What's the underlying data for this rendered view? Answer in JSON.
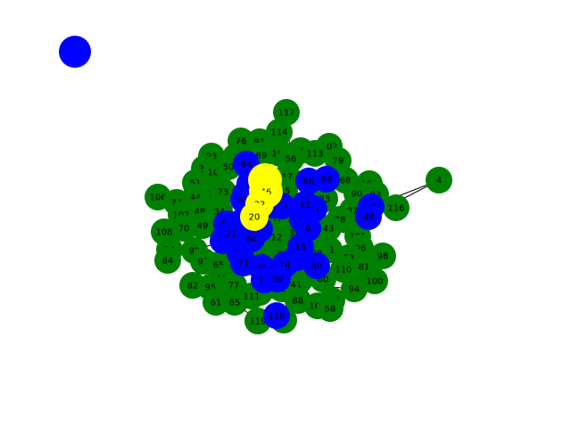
{
  "graph": {
    "colors": {
      "green": "#008000",
      "blue": "#0000ff",
      "yellow": "#ffff00",
      "edge": "#000000"
    },
    "nodes": [
      {
        "id": "117",
        "color": "green"
      },
      {
        "id": "114",
        "color": "green"
      },
      {
        "id": "76",
        "color": "green"
      },
      {
        "id": "91",
        "color": "green"
      },
      {
        "id": "102",
        "color": "green"
      },
      {
        "id": "89",
        "color": "green"
      },
      {
        "id": "113",
        "color": "green"
      },
      {
        "id": "93",
        "color": "green"
      },
      {
        "id": "63",
        "color": "green"
      },
      {
        "id": "69",
        "color": "green"
      },
      {
        "id": "105",
        "color": "green"
      },
      {
        "id": "56",
        "color": "green"
      },
      {
        "id": "79",
        "color": "green"
      },
      {
        "id": "37",
        "color": "green"
      },
      {
        "id": "103",
        "color": "green"
      },
      {
        "id": "50",
        "color": "green"
      },
      {
        "id": "84",
        "color": "blue"
      },
      {
        "id": "17",
        "color": "green"
      },
      {
        "id": "51",
        "color": "green"
      },
      {
        "id": "30",
        "color": "yellow"
      },
      {
        "id": "46",
        "color": "yellow"
      },
      {
        "id": "35",
        "color": "green"
      },
      {
        "id": "66",
        "color": "blue"
      },
      {
        "id": "86",
        "color": "blue"
      },
      {
        "id": "68",
        "color": "green"
      },
      {
        "id": "109",
        "color": "green"
      },
      {
        "id": "4",
        "color": "green"
      },
      {
        "id": "106",
        "color": "green"
      },
      {
        "id": "74",
        "color": "green"
      },
      {
        "id": "57",
        "color": "green"
      },
      {
        "id": "73",
        "color": "green"
      },
      {
        "id": "44",
        "color": "green"
      },
      {
        "id": "58",
        "color": "blue"
      },
      {
        "id": "90",
        "color": "green"
      },
      {
        "id": "83",
        "color": "green"
      },
      {
        "id": "45",
        "color": "blue"
      },
      {
        "id": "32",
        "color": "yellow"
      },
      {
        "id": "23",
        "color": "green"
      },
      {
        "id": "42",
        "color": "blue"
      },
      {
        "id": "116",
        "color": "green"
      },
      {
        "id": "48",
        "color": "green"
      },
      {
        "id": "34",
        "color": "green"
      },
      {
        "id": "10",
        "color": "blue"
      },
      {
        "id": "26",
        "color": "green"
      },
      {
        "id": "24",
        "color": "blue"
      },
      {
        "id": "87",
        "color": "green"
      },
      {
        "id": "107",
        "color": "green"
      },
      {
        "id": "20",
        "color": "yellow"
      },
      {
        "id": "19",
        "color": "green"
      },
      {
        "id": "47",
        "color": "green"
      },
      {
        "id": "78",
        "color": "green"
      },
      {
        "id": "49",
        "color": "green"
      },
      {
        "id": "55",
        "color": "blue"
      },
      {
        "id": "52",
        "color": "blue"
      },
      {
        "id": "70",
        "color": "green"
      },
      {
        "id": "5",
        "color": "blue"
      },
      {
        "id": "9",
        "color": "blue"
      },
      {
        "id": "25",
        "color": "green"
      },
      {
        "id": "43",
        "color": "green"
      },
      {
        "id": "108",
        "color": "green"
      },
      {
        "id": "39",
        "color": "green"
      },
      {
        "id": "101",
        "color": "green"
      },
      {
        "id": "18",
        "color": "blue"
      },
      {
        "id": "3",
        "color": "blue"
      },
      {
        "id": "6",
        "color": "green"
      },
      {
        "id": "13",
        "color": "green"
      },
      {
        "id": "96",
        "color": "green"
      },
      {
        "id": "92",
        "color": "green"
      },
      {
        "id": "25b",
        "label": "25",
        "color": "green"
      },
      {
        "id": "31",
        "color": "green"
      },
      {
        "id": "54",
        "color": "green"
      },
      {
        "id": "27",
        "color": "blue"
      },
      {
        "id": "29",
        "color": "green"
      },
      {
        "id": "67",
        "color": "blue"
      },
      {
        "id": "38",
        "color": "green"
      },
      {
        "id": "53",
        "color": "green"
      },
      {
        "id": "98",
        "color": "green"
      },
      {
        "id": "97",
        "color": "green"
      },
      {
        "id": "65",
        "color": "green"
      },
      {
        "id": "71",
        "color": "blue"
      },
      {
        "id": "2",
        "color": "green"
      },
      {
        "id": "84b",
        "label": "84",
        "color": "green"
      },
      {
        "id": "14",
        "color": "blue"
      },
      {
        "id": "36",
        "color": "blue"
      },
      {
        "id": "80",
        "color": "blue"
      },
      {
        "id": "110",
        "color": "green"
      },
      {
        "id": "81",
        "color": "green"
      },
      {
        "id": "112",
        "color": "green"
      },
      {
        "id": "62",
        "color": "green"
      },
      {
        "id": "60",
        "color": "green"
      },
      {
        "id": "82",
        "color": "green"
      },
      {
        "id": "75",
        "color": "blue"
      },
      {
        "id": "59",
        "color": "blue"
      },
      {
        "id": "100",
        "color": "green"
      },
      {
        "id": "95",
        "color": "green"
      },
      {
        "id": "77",
        "color": "green"
      },
      {
        "id": "28",
        "color": "green"
      },
      {
        "id": "41",
        "color": "green"
      },
      {
        "id": "94",
        "color": "green"
      },
      {
        "id": "72",
        "color": "green"
      },
      {
        "id": "115",
        "color": "green"
      },
      {
        "id": "61",
        "color": "green"
      },
      {
        "id": "85",
        "color": "green"
      },
      {
        "id": "111",
        "color": "green"
      },
      {
        "id": "88",
        "color": "green"
      },
      {
        "id": "104",
        "color": "green"
      },
      {
        "id": "58b",
        "label": "58",
        "color": "green"
      },
      {
        "id": "119",
        "color": "green"
      },
      {
        "id": "118",
        "color": "blue"
      },
      {
        "id": "99",
        "color": "green"
      },
      {
        "id": "40",
        "color": "blue"
      },
      {
        "id": "1",
        "color": "blue"
      },
      {
        "id": "33",
        "color": "blue"
      },
      {
        "id": "15",
        "color": "blue"
      },
      {
        "id": "64",
        "color": "blue"
      },
      {
        "id": "12",
        "color": "green"
      },
      {
        "id": "21",
        "color": "blue"
      },
      {
        "id": "7",
        "color": "blue"
      },
      {
        "id": "8",
        "color": "blue"
      },
      {
        "id": "11",
        "color": "blue"
      },
      {
        "id": "0",
        "color": "blue"
      }
    ],
    "edges": [
      [
        "117",
        "114"
      ],
      [
        "117",
        "56"
      ],
      [
        "114",
        "76"
      ],
      [
        "114",
        "91"
      ],
      [
        "91",
        "69"
      ],
      [
        "89",
        "113"
      ],
      [
        "102",
        "79"
      ],
      [
        "93",
        "37"
      ],
      [
        "93",
        "103"
      ],
      [
        "63",
        "50"
      ],
      [
        "69",
        "84"
      ],
      [
        "105",
        "56"
      ],
      [
        "79",
        "68"
      ],
      [
        "50",
        "84"
      ],
      [
        "84",
        "17"
      ],
      [
        "17",
        "35"
      ],
      [
        "17",
        "66"
      ],
      [
        "66",
        "86"
      ],
      [
        "86",
        "68"
      ],
      [
        "68",
        "109"
      ],
      [
        "109",
        "90"
      ],
      [
        "90",
        "83"
      ],
      [
        "83",
        "42"
      ],
      [
        "42",
        "116"
      ],
      [
        "4",
        "42"
      ],
      [
        "4",
        "40"
      ],
      [
        "106",
        "74"
      ],
      [
        "74",
        "44"
      ],
      [
        "57",
        "73"
      ],
      [
        "44",
        "57"
      ],
      [
        "73",
        "58"
      ],
      [
        "58",
        "45"
      ],
      [
        "45",
        "32"
      ],
      [
        "32",
        "30"
      ],
      [
        "30",
        "46"
      ],
      [
        "46",
        "20"
      ],
      [
        "20",
        "10"
      ],
      [
        "10",
        "19"
      ],
      [
        "19",
        "26"
      ],
      [
        "26",
        "24"
      ],
      [
        "24",
        "47"
      ],
      [
        "47",
        "78"
      ],
      [
        "87",
        "78"
      ],
      [
        "23",
        "24"
      ],
      [
        "48",
        "34"
      ],
      [
        "34",
        "55"
      ],
      [
        "55",
        "52"
      ],
      [
        "52",
        "5"
      ],
      [
        "5",
        "9"
      ],
      [
        "9",
        "18"
      ],
      [
        "18",
        "6"
      ],
      [
        "6",
        "39"
      ],
      [
        "39",
        "13"
      ],
      [
        "13",
        "25b"
      ],
      [
        "25b",
        "31"
      ],
      [
        "31",
        "53"
      ],
      [
        "53",
        "98"
      ],
      [
        "101",
        "96"
      ],
      [
        "43",
        "101"
      ],
      [
        "70",
        "49"
      ],
      [
        "49",
        "55"
      ],
      [
        "108",
        "70"
      ],
      [
        "107",
        "48"
      ],
      [
        "92",
        "3"
      ],
      [
        "3",
        "27"
      ],
      [
        "27",
        "71"
      ],
      [
        "71",
        "2"
      ],
      [
        "2",
        "29"
      ],
      [
        "29",
        "67"
      ],
      [
        "67",
        "38"
      ],
      [
        "38",
        "80"
      ],
      [
        "80",
        "60"
      ],
      [
        "60",
        "110"
      ],
      [
        "110",
        "81"
      ],
      [
        "81",
        "100"
      ],
      [
        "54",
        "84b"
      ],
      [
        "97",
        "65"
      ],
      [
        "65",
        "112"
      ],
      [
        "112",
        "36"
      ],
      [
        "36",
        "14"
      ],
      [
        "14",
        "75"
      ],
      [
        "75",
        "59"
      ],
      [
        "59",
        "62"
      ],
      [
        "62",
        "28"
      ],
      [
        "28",
        "41"
      ],
      [
        "41",
        "94"
      ],
      [
        "82",
        "95"
      ],
      [
        "95",
        "77"
      ],
      [
        "77",
        "72"
      ],
      [
        "72",
        "111"
      ],
      [
        "111",
        "88"
      ],
      [
        "88",
        "104"
      ],
      [
        "104",
        "58b"
      ],
      [
        "58b",
        "115"
      ],
      [
        "61",
        "85"
      ],
      [
        "85",
        "119"
      ],
      [
        "119",
        "118"
      ],
      [
        "118",
        "99"
      ],
      [
        "112",
        "61"
      ],
      [
        "116",
        "40"
      ],
      [
        "107",
        "106"
      ],
      [
        "37",
        "51"
      ],
      [
        "51",
        "48"
      ],
      [
        "103",
        "63"
      ],
      [
        "105",
        "89"
      ],
      [
        "79",
        "113"
      ],
      [
        "109",
        "87"
      ],
      [
        "90",
        "43"
      ],
      [
        "35",
        "23"
      ],
      [
        "46",
        "35"
      ],
      [
        "30",
        "66"
      ],
      [
        "20",
        "55"
      ],
      [
        "19",
        "39"
      ],
      [
        "47",
        "13"
      ],
      [
        "78",
        "25b"
      ],
      [
        "96",
        "31"
      ],
      [
        "9",
        "2"
      ],
      [
        "6",
        "29"
      ],
      [
        "14",
        "62"
      ],
      [
        "67",
        "80"
      ],
      [
        "36",
        "75"
      ],
      [
        "71",
        "14"
      ],
      [
        "92",
        "97"
      ],
      [
        "3",
        "65"
      ],
      [
        "28",
        "115"
      ],
      [
        "41",
        "60"
      ],
      [
        "72",
        "88"
      ],
      [
        "82",
        "77"
      ],
      [
        "98",
        "100"
      ]
    ]
  }
}
